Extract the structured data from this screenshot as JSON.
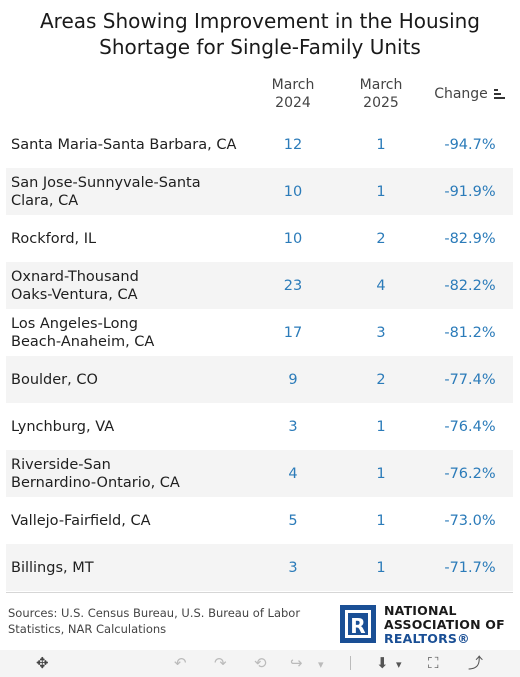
{
  "chart_data": {
    "type": "table",
    "title_lines": [
      "Areas Showing Improvement in the Housing",
      "Shortage for Single-Family Units"
    ],
    "columns": {
      "m24": [
        "March",
        "2024"
      ],
      "m25": [
        "March",
        "2025"
      ],
      "change": "Change"
    },
    "rows": [
      {
        "area": "Santa Maria-Santa Barbara, CA",
        "m24": "12",
        "m25": "1",
        "change": "-94.7%"
      },
      {
        "area": "San Jose-Sunnyvale-Santa Clara, CA",
        "m24": "10",
        "m25": "1",
        "change": "-91.9%"
      },
      {
        "area": "Rockford, IL",
        "m24": "10",
        "m25": "2",
        "change": "-82.9%"
      },
      {
        "area": "Oxnard-Thousand Oaks-Ventura, CA",
        "m24": "23",
        "m25": "4",
        "change": "-82.2%"
      },
      {
        "area": "Los Angeles-Long Beach-Anaheim, CA",
        "m24": "17",
        "m25": "3",
        "change": "-81.2%"
      },
      {
        "area": "Boulder, CO",
        "m24": "9",
        "m25": "2",
        "change": "-77.4%"
      },
      {
        "area": "Lynchburg, VA",
        "m24": "3",
        "m25": "1",
        "change": "-76.4%"
      },
      {
        "area": "Riverside-San Bernardino-Ontario, CA",
        "m24": "4",
        "m25": "1",
        "change": "-76.2%"
      },
      {
        "area": "Vallejo-Fairfield, CA",
        "m24": "5",
        "m25": "1",
        "change": "-73.0%"
      },
      {
        "area": "Billings, MT",
        "m24": "3",
        "m25": "1",
        "change": "-71.7%"
      }
    ],
    "value_color": "#2b7bb9"
  },
  "area_lines": [
    [
      "Santa Maria-Santa Barbara, CA"
    ],
    [
      "San Jose-Sunnyvale-Santa",
      "Clara, CA"
    ],
    [
      "Rockford, IL"
    ],
    [
      "Oxnard-Thousand",
      "Oaks-Ventura, CA"
    ],
    [
      "Los Angeles-Long",
      "Beach-Anaheim, CA"
    ],
    [
      "Boulder, CO"
    ],
    [
      "Lynchburg, VA"
    ],
    [
      "Riverside-San",
      "Bernardino-Ontario, CA"
    ],
    [
      "Vallejo-Fairfield, CA"
    ],
    [
      "Billings, MT"
    ]
  ],
  "footer": {
    "sources_line1": "Sources: U.S. Census Bureau, U.S. Bureau of Labor",
    "sources_line2": "Statistics, NAR Calculations",
    "logo_line1": "NATIONAL",
    "logo_line2": "ASSOCIATION OF",
    "logo_line3": "REALTORS®",
    "brand_color": "#1a4f95"
  },
  "toolbar": {
    "icons": [
      "move-icon",
      "undo-icon",
      "redo-icon",
      "revert-icon",
      "replay-icon",
      "download-icon",
      "fullscreen-icon",
      "share-icon"
    ],
    "glyphs": {
      "move": "✥",
      "undo": "↶",
      "redo": "↷",
      "revert": "⟲",
      "replay": "↪",
      "caret": "▾",
      "download": "⬇",
      "fullscreen": "⛶",
      "share": "⤴"
    }
  }
}
